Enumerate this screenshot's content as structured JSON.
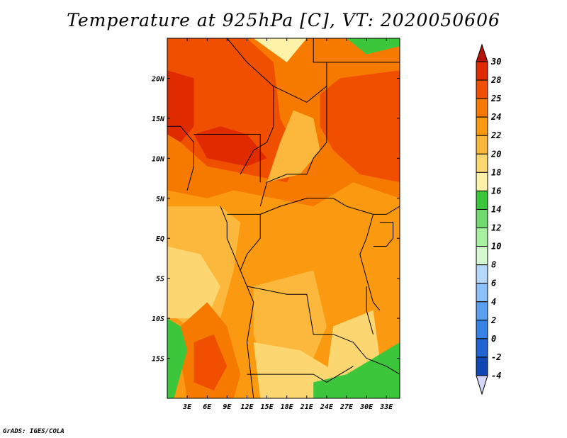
{
  "chart_data": {
    "type": "heatmap",
    "title": "Temperature at 925hPa [C], VT: 2020050606",
    "xlabel": "",
    "ylabel": "",
    "x_ticks": [
      "3E",
      "6E",
      "9E",
      "12E",
      "15E",
      "18E",
      "21E",
      "24E",
      "27E",
      "30E",
      "33E"
    ],
    "x_tick_values": [
      3,
      6,
      9,
      12,
      15,
      18,
      21,
      24,
      27,
      30,
      33
    ],
    "y_ticks": [
      "20N",
      "15N",
      "10N",
      "5N",
      "EQ",
      "5S",
      "10S",
      "15S"
    ],
    "y_tick_values": [
      20,
      15,
      10,
      5,
      0,
      -5,
      -10,
      -15
    ],
    "xlim": [
      0,
      35
    ],
    "ylim": [
      -20,
      25
    ],
    "colorbar": {
      "labels": [
        "30",
        "28",
        "25",
        "24",
        "22",
        "20",
        "18",
        "16",
        "14",
        "12",
        "10",
        "8",
        "6",
        "4",
        "2",
        "0",
        "-2",
        "-4"
      ],
      "levels": [
        30,
        28,
        25,
        24,
        22,
        20,
        18,
        16,
        14,
        12,
        10,
        8,
        6,
        4,
        2,
        0,
        -2,
        -4
      ],
      "colors": [
        "#e02a00",
        "#f04f00",
        "#f77a00",
        "#fb9a10",
        "#fbb83c",
        "#fcd670",
        "#fdf2a8",
        "#3cc63c",
        "#70dc70",
        "#a6f0a0",
        "#d6fad0",
        "#b4d8fa",
        "#8cc0f8",
        "#5aa0f0",
        "#3682e6",
        "#1e64d2",
        "#0e46b4",
        "#08208a"
      ],
      "top_arrow_color": "#b4140a",
      "bottom_arrow_color": "#d6d6f8"
    },
    "regions": [
      {
        "level": 24,
        "points": [
          [
            0,
            25
          ],
          [
            35,
            25
          ],
          [
            35,
            -20
          ],
          [
            0,
            -20
          ]
        ]
      },
      {
        "level": 25,
        "points": [
          [
            0,
            25
          ],
          [
            35,
            25
          ],
          [
            35,
            5
          ],
          [
            28,
            7
          ],
          [
            22,
            4
          ],
          [
            16,
            5
          ],
          [
            10,
            6
          ],
          [
            6,
            5
          ],
          [
            0,
            6
          ]
        ]
      },
      {
        "level": 28,
        "points": [
          [
            0,
            25
          ],
          [
            12,
            25
          ],
          [
            16,
            22
          ],
          [
            17,
            15
          ],
          [
            20,
            10
          ],
          [
            18,
            7
          ],
          [
            12,
            8
          ],
          [
            6,
            9
          ],
          [
            2,
            12
          ],
          [
            0,
            13
          ]
        ]
      },
      {
        "level": 28,
        "points": [
          [
            23,
            18
          ],
          [
            26,
            20
          ],
          [
            35,
            21
          ],
          [
            35,
            7
          ],
          [
            29,
            8
          ],
          [
            25,
            11
          ],
          [
            23,
            14
          ]
        ]
      },
      {
        "level": 30,
        "points": [
          [
            0,
            21
          ],
          [
            4,
            20
          ],
          [
            4,
            14
          ],
          [
            2,
            12
          ],
          [
            0,
            13
          ]
        ]
      },
      {
        "level": 30,
        "points": [
          [
            4,
            13
          ],
          [
            8,
            14
          ],
          [
            12,
            13
          ],
          [
            15,
            10
          ],
          [
            12,
            9
          ],
          [
            6,
            10
          ]
        ]
      },
      {
        "level": 22,
        "points": [
          [
            0,
            4
          ],
          [
            8,
            4
          ],
          [
            11,
            2
          ],
          [
            10,
            -4
          ],
          [
            8,
            -10
          ],
          [
            3,
            -11
          ],
          [
            0,
            -9
          ]
        ]
      },
      {
        "level": 22,
        "points": [
          [
            13,
            -6
          ],
          [
            22,
            -4
          ],
          [
            24,
            -11
          ],
          [
            21,
            -17
          ],
          [
            15,
            -17
          ],
          [
            13,
            -12
          ]
        ]
      },
      {
        "level": 22,
        "points": [
          [
            15,
            7
          ],
          [
            20,
            8
          ],
          [
            23,
            11
          ],
          [
            22,
            15
          ],
          [
            19,
            16
          ],
          [
            17,
            12
          ]
        ]
      },
      {
        "level": 20,
        "points": [
          [
            0,
            -1
          ],
          [
            5,
            -2
          ],
          [
            8,
            -6
          ],
          [
            6,
            -10
          ],
          [
            0,
            -10
          ]
        ]
      },
      {
        "level": 20,
        "points": [
          [
            13,
            -13
          ],
          [
            20,
            -14
          ],
          [
            24,
            -16
          ],
          [
            26,
            -20
          ],
          [
            14,
            -20
          ]
        ]
      },
      {
        "level": 20,
        "points": [
          [
            25,
            -11
          ],
          [
            31,
            -9
          ],
          [
            32,
            -15
          ],
          [
            28,
            -19
          ],
          [
            24,
            -17
          ]
        ]
      },
      {
        "level": 25,
        "points": [
          [
            2,
            -11
          ],
          [
            6,
            -8
          ],
          [
            9,
            -11
          ],
          [
            11,
            -17
          ],
          [
            10,
            -20
          ],
          [
            3,
            -20
          ],
          [
            2,
            -15
          ]
        ]
      },
      {
        "level": 28,
        "points": [
          [
            4,
            -13
          ],
          [
            7,
            -12
          ],
          [
            9,
            -16
          ],
          [
            7,
            -19
          ],
          [
            4,
            -18
          ]
        ]
      },
      {
        "level": 16,
        "points": [
          [
            0,
            -10
          ],
          [
            2,
            -11
          ],
          [
            3,
            -14
          ],
          [
            1,
            -20
          ],
          [
            0,
            -20
          ]
        ]
      },
      {
        "level": 16,
        "points": [
          [
            22,
            -18
          ],
          [
            27,
            -17
          ],
          [
            33,
            -14
          ],
          [
            35,
            -13
          ],
          [
            35,
            -20
          ],
          [
            22,
            -20
          ]
        ]
      },
      {
        "level": 16,
        "points": [
          [
            27,
            25
          ],
          [
            30,
            23
          ],
          [
            35,
            24
          ],
          [
            35,
            25
          ]
        ]
      },
      {
        "level": 18,
        "points": [
          [
            13,
            25
          ],
          [
            18,
            22
          ],
          [
            20,
            24
          ],
          [
            21,
            25
          ]
        ]
      }
    ],
    "boundaries": [
      [
        [
          9,
          25
        ],
        [
          12,
          22
        ],
        [
          16,
          19
        ],
        [
          16,
          14
        ],
        [
          15,
          12
        ],
        [
          13,
          11
        ],
        [
          11,
          8
        ]
      ],
      [
        [
          16,
          19
        ],
        [
          21,
          17
        ],
        [
          24,
          19
        ],
        [
          24,
          22
        ],
        [
          27,
          22
        ],
        [
          35,
          22
        ]
      ],
      [
        [
          24,
          19
        ],
        [
          24,
          12
        ],
        [
          22,
          10
        ],
        [
          21,
          8
        ],
        [
          18,
          8
        ],
        [
          15,
          7
        ],
        [
          14,
          4
        ]
      ],
      [
        [
          4,
          13
        ],
        [
          7,
          13
        ],
        [
          11,
          13
        ],
        [
          14,
          13
        ],
        [
          14,
          7
        ]
      ],
      [
        [
          0,
          14
        ],
        [
          2,
          14
        ],
        [
          4,
          12
        ],
        [
          4,
          9
        ],
        [
          3,
          6
        ]
      ],
      [
        [
          9,
          3
        ],
        [
          14,
          3
        ],
        [
          14,
          0
        ],
        [
          12,
          -2
        ],
        [
          11,
          -4
        ]
      ],
      [
        [
          14,
          3
        ],
        [
          17,
          4
        ],
        [
          21,
          5
        ],
        [
          25,
          5
        ],
        [
          27,
          4
        ],
        [
          31,
          3
        ]
      ],
      [
        [
          31,
          3
        ],
        [
          30,
          0
        ],
        [
          29,
          -2
        ],
        [
          30,
          -5
        ],
        [
          31,
          -8
        ],
        [
          32,
          -9
        ]
      ],
      [
        [
          12,
          -6
        ],
        [
          18,
          -7
        ],
        [
          21,
          -7
        ],
        [
          22,
          -12
        ],
        [
          25,
          -12
        ],
        [
          28,
          -13
        ],
        [
          30,
          -15
        ],
        [
          33,
          -16
        ],
        [
          35,
          -17
        ]
      ],
      [
        [
          12,
          -17
        ],
        [
          22,
          -17
        ],
        [
          24,
          -18
        ],
        [
          26,
          -17
        ],
        [
          28,
          -16
        ]
      ],
      [
        [
          13,
          -20
        ],
        [
          12,
          -13
        ],
        [
          13,
          -8
        ],
        [
          12,
          -6
        ],
        [
          10,
          -2
        ],
        [
          9,
          0
        ],
        [
          9,
          2
        ],
        [
          8,
          4
        ]
      ],
      [
        [
          22,
          25
        ],
        [
          22,
          22
        ],
        [
          24,
          22
        ]
      ],
      [
        [
          31,
          3
        ],
        [
          33,
          3
        ],
        [
          35,
          4
        ]
      ],
      [
        [
          31,
          -1
        ],
        [
          33,
          -1
        ],
        [
          34,
          0
        ],
        [
          34,
          2
        ],
        [
          32,
          2
        ]
      ],
      [
        [
          30,
          -6
        ],
        [
          30,
          -9
        ],
        [
          31,
          -12
        ]
      ]
    ]
  },
  "credit": "GrADS: IGES/COLA"
}
